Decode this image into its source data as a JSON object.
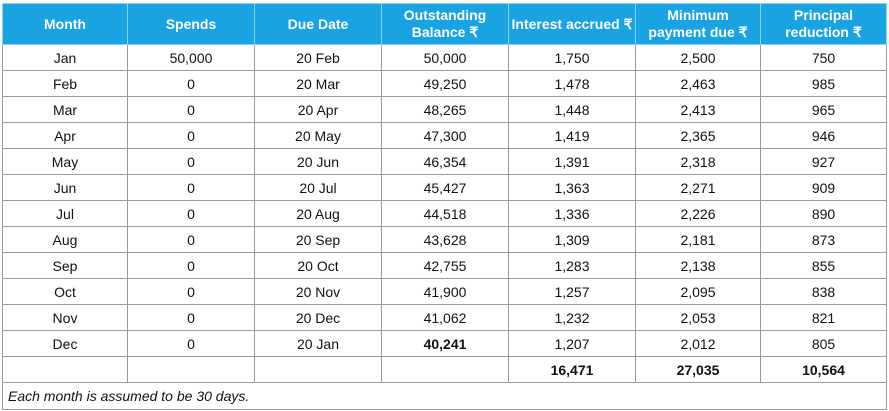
{
  "table": {
    "headers": [
      "Month",
      "Spends",
      "Due Date",
      "Outstanding Balance ₹",
      "Interest accrued ₹",
      "Minimum payment due ₹",
      "Principal reduction ₹"
    ],
    "rows": [
      [
        "Jan",
        "50,000",
        "20 Feb",
        "50,000",
        "1,750",
        "2,500",
        "750"
      ],
      [
        "Feb",
        "0",
        "20 Mar",
        "49,250",
        "1,478",
        "2,463",
        "985"
      ],
      [
        "Mar",
        "0",
        "20 Apr",
        "48,265",
        "1,448",
        "2,413",
        "965"
      ],
      [
        "Apr",
        "0",
        "20 May",
        "47,300",
        "1,419",
        "2,365",
        "946"
      ],
      [
        "May",
        "0",
        "20 Jun",
        "46,354",
        "1,391",
        "2,318",
        "927"
      ],
      [
        "Jun",
        "0",
        "20 Jul",
        "45,427",
        "1,363",
        "2,271",
        "909"
      ],
      [
        "Jul",
        "0",
        "20 Aug",
        "44,518",
        "1,336",
        "2,226",
        "890"
      ],
      [
        "Aug",
        "0",
        "20 Sep",
        "43,628",
        "1,309",
        "2,181",
        "873"
      ],
      [
        "Sep",
        "0",
        "20 Oct",
        "42,755",
        "1,283",
        "2,138",
        "855"
      ],
      [
        "Oct",
        "0",
        "20 Nov",
        "41,900",
        "1,257",
        "2,095",
        "838"
      ],
      [
        "Nov",
        "0",
        "20 Dec",
        "41,062",
        "1,232",
        "2,053",
        "821"
      ],
      [
        "Dec",
        "0",
        "20 Jan",
        "40,241",
        "1,207",
        "2,012",
        "805"
      ]
    ],
    "totals": [
      "",
      "",
      "",
      "",
      "16,471",
      "27,035",
      "10,564"
    ],
    "note": "Each month is assumed to be 30 days.",
    "header_color": "#19a3e2"
  }
}
